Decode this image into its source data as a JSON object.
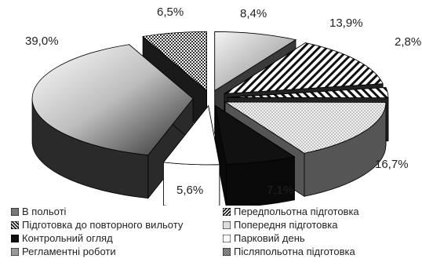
{
  "chart_data": {
    "type": "pie",
    "title": "",
    "slices": [
      {
        "name": "В польоті",
        "value": 8.4,
        "label": "8,4%"
      },
      {
        "name": "Передпольотна підготовка",
        "value": 13.9,
        "label": "13,9%"
      },
      {
        "name": "Підготовка до повторного вильоту",
        "value": 2.8,
        "label": "2,8%"
      },
      {
        "name": "Попередня підготовка",
        "value": 16.7,
        "label": "16,7%"
      },
      {
        "name": "Контрольний огляд",
        "value": 7.1,
        "label": "7,1%"
      },
      {
        "name": "Парковий день",
        "value": 5.6,
        "label": "5,6%"
      },
      {
        "name": "Регламентні роботи",
        "value": 39.0,
        "label": "39,0%"
      },
      {
        "name": "Післяпольотна підготовка",
        "value": 6.5,
        "label": "6,5%"
      }
    ],
    "legend_position": "bottom",
    "exploded": true,
    "style": "3d"
  },
  "legend": [
    {
      "name": "В польоті",
      "pattern": "gray"
    },
    {
      "name": "Передпольотна підготовка",
      "pattern": "diagonal"
    },
    {
      "name": "Підготовка до повторного вильоту",
      "pattern": "diagonal-rev"
    },
    {
      "name": "Попередня підготовка",
      "pattern": "dots"
    },
    {
      "name": "Контрольний огляд",
      "pattern": "black"
    },
    {
      "name": "Парковий день",
      "pattern": "white"
    },
    {
      "name": "Регламентні роботи",
      "pattern": "shade"
    },
    {
      "name": "Післяпольотна підготовка",
      "pattern": "checker"
    }
  ]
}
